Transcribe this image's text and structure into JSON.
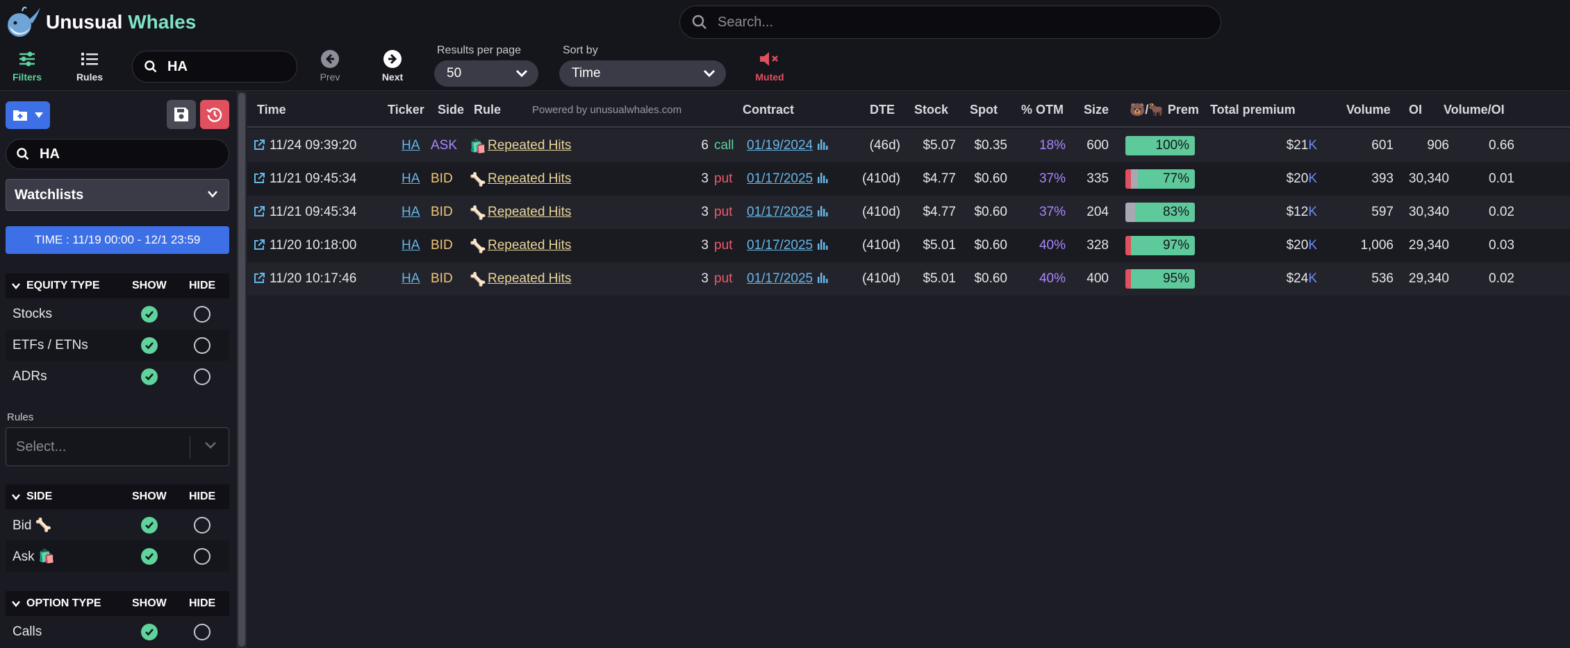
{
  "app": {
    "brand_main": "Unusual ",
    "brand_accent": "Whales"
  },
  "global_search": {
    "placeholder": "Search..."
  },
  "toolbar": {
    "filters_label": "Filters",
    "rules_label": "Rules",
    "ticker_value": "HA",
    "prev_label": "Prev",
    "next_label": "Next",
    "results_label": "Results per page",
    "results_value": "50",
    "sort_label": "Sort by",
    "sort_value": "Time",
    "muted_label": "Muted"
  },
  "sidebar": {
    "search_value": "HA",
    "watchlists_label": "Watchlists",
    "time_badge": "TIME : 11/19 00:00 - 12/1 23:59",
    "equity": {
      "title": "EQUITY TYPE",
      "show": "SHOW",
      "hide": "HIDE",
      "items": [
        "Stocks",
        "ETFs / ETNs",
        "ADRs"
      ]
    },
    "rules_label": "Rules",
    "rules_placeholder": "Select...",
    "side": {
      "title": "SIDE",
      "show": "SHOW",
      "hide": "HIDE",
      "items": [
        "Bid 🦴",
        "Ask 🛍️"
      ]
    },
    "option_type": {
      "title": "OPTION TYPE",
      "show": "SHOW",
      "hide": "HIDE",
      "items": [
        "Calls"
      ]
    }
  },
  "table": {
    "powered_by": "Powered by unusualwhales.com",
    "headers": {
      "time": "Time",
      "ticker": "Ticker",
      "side": "Side",
      "rule": "Rule",
      "contract": "Contract",
      "dte": "DTE",
      "stock": "Stock",
      "spot": "Spot",
      "otm": "% OTM",
      "size": "Size",
      "prem": "🐻/🐂 Prem",
      "total": "Total premium",
      "volume": "Volume",
      "oi": "OI",
      "voloi": "Volume/OI"
    },
    "rows": [
      {
        "time": "11/24 09:39:20",
        "ticker": "HA",
        "side": "ASK",
        "rule_icon": "🛍️",
        "rule": "Repeated Hits",
        "hits": "6",
        "type": "call",
        "expiry": "01/19/2024",
        "dte": "(46d)",
        "stock": "$5.07",
        "spot": "$0.35",
        "otm": "18%",
        "size": "600",
        "prem_pct": "100%",
        "prem_red": 0,
        "prem_gray": 0,
        "total": "$21",
        "total_unit": "K",
        "volume": "601",
        "oi": "906",
        "voloi": "0.66"
      },
      {
        "time": "11/21 09:45:34",
        "ticker": "HA",
        "side": "BID",
        "rule_icon": "🦴",
        "rule": "Repeated Hits",
        "hits": "3",
        "type": "put",
        "expiry": "01/17/2025",
        "dte": "(410d)",
        "stock": "$4.77",
        "spot": "$0.60",
        "otm": "37%",
        "size": "335",
        "prem_pct": "77%",
        "prem_red": 8,
        "prem_gray": 10,
        "total": "$20",
        "total_unit": "K",
        "volume": "393",
        "oi": "30,340",
        "voloi": "0.01"
      },
      {
        "time": "11/21 09:45:34",
        "ticker": "HA",
        "side": "BID",
        "rule_icon": "🦴",
        "rule": "Repeated Hits",
        "hits": "3",
        "type": "put",
        "expiry": "01/17/2025",
        "dte": "(410d)",
        "stock": "$4.77",
        "spot": "$0.60",
        "otm": "37%",
        "size": "204",
        "prem_pct": "83%",
        "prem_red": 0,
        "prem_gray": 14,
        "total": "$12",
        "total_unit": "K",
        "volume": "597",
        "oi": "30,340",
        "voloi": "0.02"
      },
      {
        "time": "11/20 10:18:00",
        "ticker": "HA",
        "side": "BID",
        "rule_icon": "🦴",
        "rule": "Repeated Hits",
        "hits": "3",
        "type": "put",
        "expiry": "01/17/2025",
        "dte": "(410d)",
        "stock": "$5.01",
        "spot": "$0.60",
        "otm": "40%",
        "size": "328",
        "prem_pct": "97%",
        "prem_red": 8,
        "prem_gray": 0,
        "total": "$20",
        "total_unit": "K",
        "volume": "1,006",
        "oi": "29,340",
        "voloi": "0.03"
      },
      {
        "time": "11/20 10:17:46",
        "ticker": "HA",
        "side": "BID",
        "rule_icon": "🦴",
        "rule": "Repeated Hits",
        "hits": "3",
        "type": "put",
        "expiry": "01/17/2025",
        "dte": "(410d)",
        "stock": "$5.01",
        "spot": "$0.60",
        "otm": "40%",
        "size": "400",
        "prem_pct": "95%",
        "prem_red": 8,
        "prem_gray": 0,
        "total": "$24",
        "total_unit": "K",
        "volume": "536",
        "oi": "29,340",
        "voloi": "0.02"
      }
    ]
  },
  "colors": {
    "accent_green": "#5ed39b",
    "accent_blue": "#3d6fe6",
    "alert_red": "#e0505f",
    "ask_purple": "#a987ff",
    "bid_yellow": "#f2c775"
  }
}
